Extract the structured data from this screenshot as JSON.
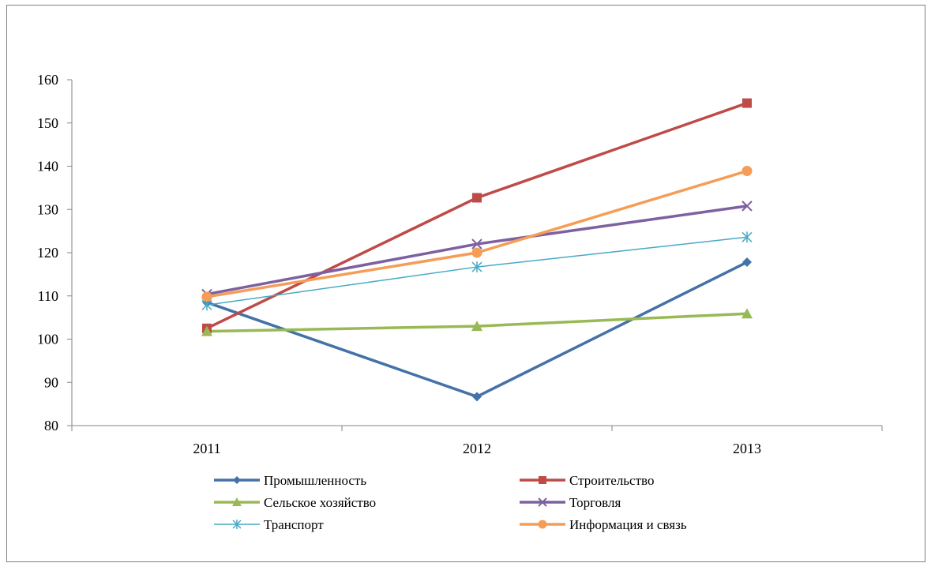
{
  "chart_data": {
    "type": "line",
    "title": "",
    "xlabel": "",
    "ylabel": "",
    "categories": [
      "2011",
      "2012",
      "2013"
    ],
    "ylim": [
      80,
      160
    ],
    "yticks": [
      "80",
      "90",
      "100",
      "110",
      "120",
      "130",
      "140",
      "150",
      "160"
    ],
    "grid": false,
    "legend_position": "bottom",
    "series": [
      {
        "name": "Промышленность",
        "values": [
          108.5,
          86.7,
          117.8
        ],
        "color": "#4472A8",
        "marker": "diamond",
        "width": "thick"
      },
      {
        "name": "Строительство",
        "values": [
          102.5,
          132.7,
          154.6
        ],
        "color": "#BE4B48",
        "marker": "square",
        "width": "thick"
      },
      {
        "name": "Сельское хозяйство",
        "values": [
          101.8,
          103.0,
          105.9
        ],
        "color": "#98B954",
        "marker": "triangle",
        "width": "thick"
      },
      {
        "name": "Торговля",
        "values": [
          110.4,
          122.0,
          130.8
        ],
        "color": "#7D60A0",
        "marker": "x",
        "width": "thick"
      },
      {
        "name": "Транспорт",
        "values": [
          107.9,
          116.7,
          123.6
        ],
        "color": "#46AAC5",
        "marker": "asterisk",
        "width": "thin"
      },
      {
        "name": "Информация и связь",
        "values": [
          109.8,
          120.0,
          138.9
        ],
        "color": "#F59D56",
        "marker": "circle",
        "width": "thick"
      }
    ]
  }
}
